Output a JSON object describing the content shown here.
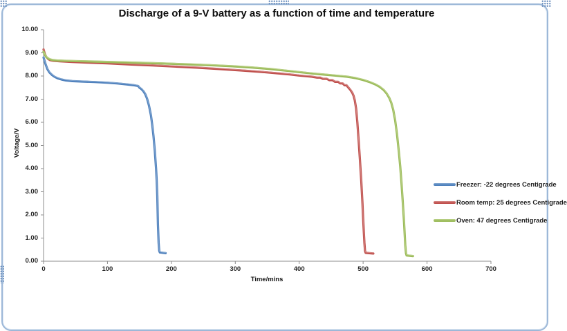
{
  "title": "Discharge of a 9-V battery as a function of time and temperature",
  "chart_data": {
    "type": "line",
    "title": "Discharge of a 9-V battery as a function of time and temperature",
    "xlabel": "Time/mins",
    "ylabel": "Voltage/V",
    "xlim": [
      0,
      700
    ],
    "ylim": [
      0,
      10
    ],
    "x_ticks": [
      "0",
      "100",
      "200",
      "300",
      "400",
      "500",
      "600",
      "700"
    ],
    "y_ticks": [
      "0.00",
      "1.00",
      "2.00",
      "3.00",
      "4.00",
      "5.00",
      "6.00",
      "7.00",
      "8.00",
      "9.00",
      "10.00"
    ],
    "grid": false,
    "legend_position": "right",
    "axis_color": "#8c8c8c",
    "series": [
      {
        "name": "Freezer: -22 degrees Centigrade",
        "color": "#4F81BD",
        "highlight": "#88ABD3",
        "points": [
          [
            0,
            8.8
          ],
          [
            3,
            8.52
          ],
          [
            6,
            8.3
          ],
          [
            9,
            8.16
          ],
          [
            13,
            8.05
          ],
          [
            17,
            7.97
          ],
          [
            22,
            7.9
          ],
          [
            28,
            7.85
          ],
          [
            35,
            7.81
          ],
          [
            45,
            7.78
          ],
          [
            60,
            7.76
          ],
          [
            80,
            7.74
          ],
          [
            100,
            7.71
          ],
          [
            115,
            7.68
          ],
          [
            130,
            7.64
          ],
          [
            142,
            7.6
          ],
          [
            148,
            7.57
          ],
          [
            150,
            7.5
          ],
          [
            153,
            7.44
          ],
          [
            156,
            7.35
          ],
          [
            159,
            7.22
          ],
          [
            162,
            7.02
          ],
          [
            165,
            6.72
          ],
          [
            168,
            6.3
          ],
          [
            170,
            5.9
          ],
          [
            172,
            5.4
          ],
          [
            174,
            4.8
          ],
          [
            176,
            4.0
          ],
          [
            177,
            3.5
          ],
          [
            178,
            2.8
          ],
          [
            179,
            1.6
          ],
          [
            180,
            0.8
          ],
          [
            181,
            0.45
          ],
          [
            182,
            0.38
          ],
          [
            191,
            0.35
          ]
        ]
      },
      {
        "name": "Room temp: 25 degrees Centigrade",
        "color": "#C0504D",
        "highlight": "#D68D8B",
        "points": [
          [
            0,
            9.15
          ],
          [
            2,
            8.95
          ],
          [
            4,
            8.83
          ],
          [
            7,
            8.74
          ],
          [
            10,
            8.69
          ],
          [
            15,
            8.66
          ],
          [
            25,
            8.64
          ],
          [
            45,
            8.61
          ],
          [
            70,
            8.58
          ],
          [
            100,
            8.55
          ],
          [
            135,
            8.5
          ],
          [
            170,
            8.46
          ],
          [
            205,
            8.41
          ],
          [
            240,
            8.36
          ],
          [
            275,
            8.3
          ],
          [
            310,
            8.24
          ],
          [
            340,
            8.18
          ],
          [
            365,
            8.12
          ],
          [
            385,
            8.07
          ],
          [
            400,
            8.02
          ],
          [
            412,
            7.99
          ],
          [
            420,
            7.97
          ],
          [
            428,
            7.93
          ],
          [
            433,
            7.93
          ],
          [
            437,
            7.88
          ],
          [
            443,
            7.88
          ],
          [
            447,
            7.82
          ],
          [
            452,
            7.82
          ],
          [
            456,
            7.75
          ],
          [
            461,
            7.75
          ],
          [
            464,
            7.68
          ],
          [
            468,
            7.68
          ],
          [
            471,
            7.6
          ],
          [
            474,
            7.6
          ],
          [
            477,
            7.5
          ],
          [
            480,
            7.4
          ],
          [
            483,
            7.28
          ],
          [
            485,
            7.15
          ],
          [
            487,
            6.95
          ],
          [
            489,
            6.6
          ],
          [
            491,
            6.0
          ],
          [
            493,
            5.2
          ],
          [
            495,
            4.4
          ],
          [
            497,
            3.5
          ],
          [
            499,
            2.5
          ],
          [
            500,
            1.9
          ],
          [
            501,
            1.3
          ],
          [
            502,
            0.8
          ],
          [
            503,
            0.45
          ],
          [
            504,
            0.36
          ],
          [
            516,
            0.33
          ]
        ]
      },
      {
        "name": "Oven: 47 degrees Centigrade",
        "color": "#9BBB59",
        "highlight": "#BCD38B",
        "points": [
          [
            0,
            9.05
          ],
          [
            2,
            8.92
          ],
          [
            5,
            8.8
          ],
          [
            9,
            8.73
          ],
          [
            14,
            8.69
          ],
          [
            22,
            8.67
          ],
          [
            40,
            8.65
          ],
          [
            70,
            8.63
          ],
          [
            100,
            8.61
          ],
          [
            140,
            8.58
          ],
          [
            180,
            8.55
          ],
          [
            220,
            8.51
          ],
          [
            260,
            8.47
          ],
          [
            295,
            8.42
          ],
          [
            325,
            8.37
          ],
          [
            355,
            8.3
          ],
          [
            380,
            8.23
          ],
          [
            400,
            8.17
          ],
          [
            420,
            8.11
          ],
          [
            440,
            8.06
          ],
          [
            460,
            8.01
          ],
          [
            475,
            7.97
          ],
          [
            488,
            7.91
          ],
          [
            500,
            7.83
          ],
          [
            510,
            7.74
          ],
          [
            519,
            7.64
          ],
          [
            526,
            7.53
          ],
          [
            532,
            7.4
          ],
          [
            537,
            7.24
          ],
          [
            541,
            7.05
          ],
          [
            544,
            6.85
          ],
          [
            547,
            6.55
          ],
          [
            550,
            6.1
          ],
          [
            553,
            5.5
          ],
          [
            556,
            4.7
          ],
          [
            558,
            4.1
          ],
          [
            560,
            3.4
          ],
          [
            562,
            2.6
          ],
          [
            564,
            1.7
          ],
          [
            565,
            1.2
          ],
          [
            566,
            0.7
          ],
          [
            567,
            0.35
          ],
          [
            568,
            0.25
          ],
          [
            578,
            0.22
          ]
        ]
      }
    ]
  }
}
